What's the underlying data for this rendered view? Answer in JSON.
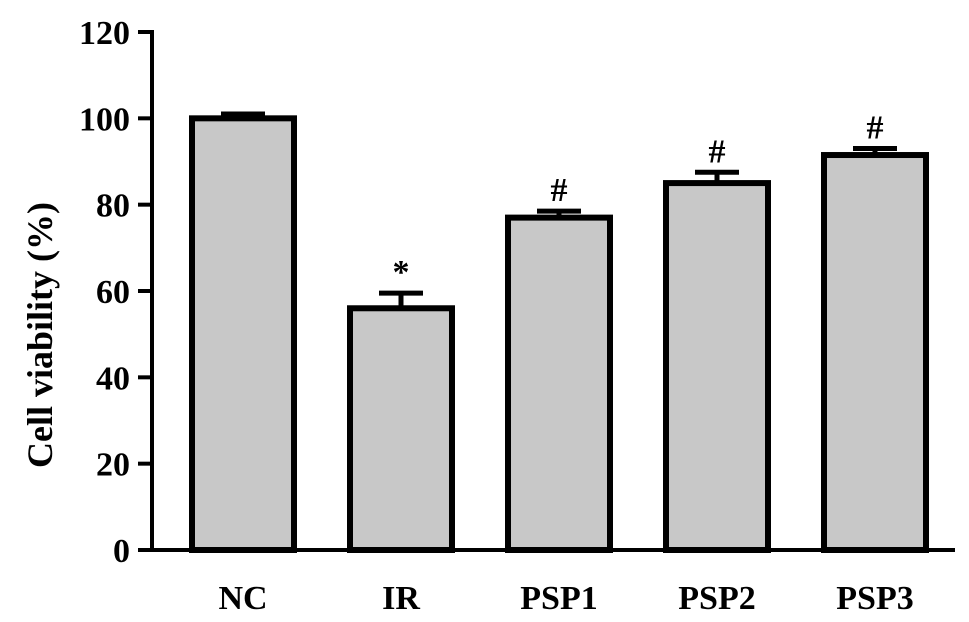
{
  "chart_data": {
    "type": "bar",
    "title": "",
    "xlabel": "",
    "ylabel": "Cell viability (%)",
    "ylim": [
      0,
      120
    ],
    "yticks": [
      0,
      20,
      40,
      60,
      80,
      100,
      120
    ],
    "grid": false,
    "categories": [
      "NC",
      "IR",
      "PSP1",
      "PSP2",
      "PSP3"
    ],
    "values": [
      100,
      56,
      77,
      85,
      91.5
    ],
    "errors": [
      1,
      3.5,
      1.5,
      2.5,
      1.5
    ],
    "annotations": [
      "",
      "*",
      "#",
      "#",
      "#"
    ],
    "bar_color": "#c8c8c8",
    "edge_color": "#000000"
  }
}
